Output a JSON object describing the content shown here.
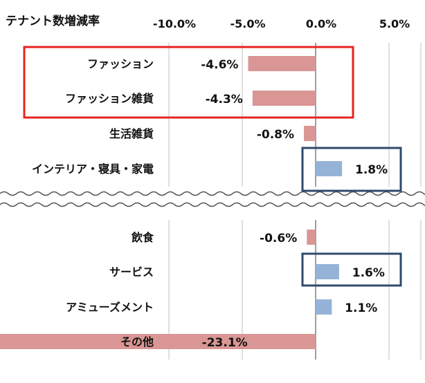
{
  "chart_data": {
    "type": "bar",
    "orientation": "horizontal",
    "title": "テナント数増減率",
    "x_ticks": [
      "-10.0%",
      "-5.0%",
      "0.0%",
      "5.0%"
    ],
    "x_tick_values": [
      -10,
      -5,
      0,
      5
    ],
    "xlim": [
      -10,
      5
    ],
    "grid": true,
    "axis_break": "between インテリア・寝具・家電 and 飲食",
    "categories": [
      "ファッション",
      "ファッション雑貨",
      "生活雑貨",
      "インテリア・寝具・家電",
      "飲食",
      "サービス",
      "アミューズメント",
      "その他"
    ],
    "values": [
      -4.6,
      -4.3,
      -0.8,
      1.8,
      -0.6,
      1.6,
      1.1,
      -23.1
    ],
    "value_labels": [
      "-4.6%",
      "-4.3%",
      "-0.8%",
      "1.8%",
      "-0.6%",
      "1.6%",
      "1.1%",
      "-23.1%"
    ],
    "colors": {
      "negative": "#d99694",
      "positive": "#95b3d7",
      "grid": "#bfbfbf",
      "axis": "#7f7f7f"
    },
    "highlights": [
      {
        "categories": [
          "ファッション",
          "ファッション雑貨"
        ],
        "color": "#e8231f"
      },
      {
        "categories": [
          "インテリア・寝具・家電"
        ],
        "color": "#2e4a6b"
      },
      {
        "categories": [
          "サービス"
        ],
        "color": "#2e4a6b"
      }
    ]
  }
}
